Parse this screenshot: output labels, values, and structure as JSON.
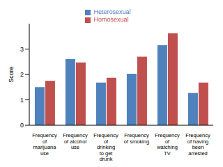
{
  "chart_data": {
    "type": "bar",
    "ylabel": "Score",
    "categories": [
      "Frequency of marijuana use",
      "Frequency of alcohol use",
      "Frequency of drinking to get drunk",
      "Frequency of smoking",
      "Frequency of watching TV",
      "Frequency of having been arrested"
    ],
    "series": [
      {
        "name": "Heterosexual",
        "color": "#4f81bd",
        "values": [
          1.5,
          2.6,
          1.68,
          2.03,
          3.15,
          1.27
        ]
      },
      {
        "name": "Homosexual",
        "color": "#c0504d",
        "values": [
          1.75,
          2.47,
          1.87,
          2.7,
          3.62,
          1.68
        ]
      }
    ],
    "ylim": [
      0,
      4
    ],
    "yticks": [
      0,
      1,
      2,
      3
    ],
    "legend": "top"
  }
}
